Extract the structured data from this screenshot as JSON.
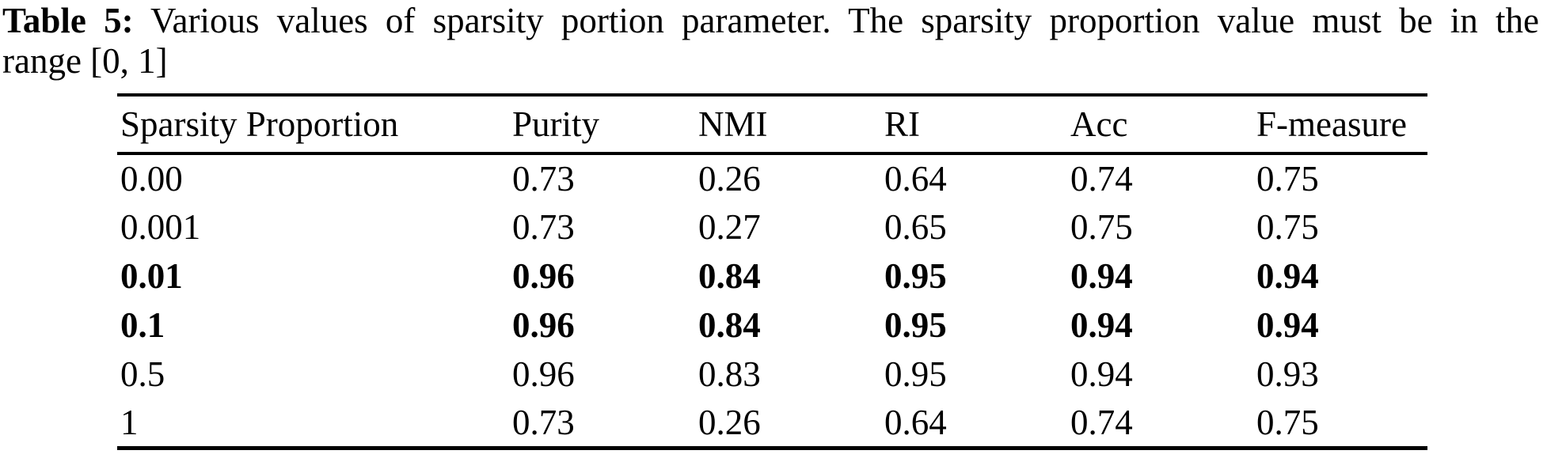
{
  "caption": {
    "label": "Table 5:",
    "line1_rest": " Various values of sparsity portion parameter. The sparsity proportion value must be in the",
    "line2": "range [0, 1]"
  },
  "table": {
    "columns": [
      "Sparsity Proportion",
      "Purity",
      "NMI",
      "RI",
      "Acc",
      "F-measure"
    ],
    "rows": [
      {
        "cells": [
          "0.00",
          "0.73",
          "0.26",
          "0.64",
          "0.74",
          "0.75"
        ],
        "bold": false
      },
      {
        "cells": [
          "0.001",
          "0.73",
          "0.27",
          "0.65",
          "0.75",
          "0.75"
        ],
        "bold": false
      },
      {
        "cells": [
          "0.01",
          "0.96",
          "0.84",
          "0.95",
          "0.94",
          "0.94"
        ],
        "bold": true
      },
      {
        "cells": [
          "0.1",
          "0.96",
          "0.84",
          "0.95",
          "0.94",
          "0.94"
        ],
        "bold": true
      },
      {
        "cells": [
          "0.5",
          "0.96",
          "0.83",
          "0.95",
          "0.94",
          "0.93"
        ],
        "bold": false
      },
      {
        "cells": [
          "1",
          "0.73",
          "0.26",
          "0.64",
          "0.74",
          "0.75"
        ],
        "bold": false
      }
    ]
  },
  "colors": {
    "text": "#000000",
    "background": "#ffffff",
    "rule": "#000000"
  }
}
